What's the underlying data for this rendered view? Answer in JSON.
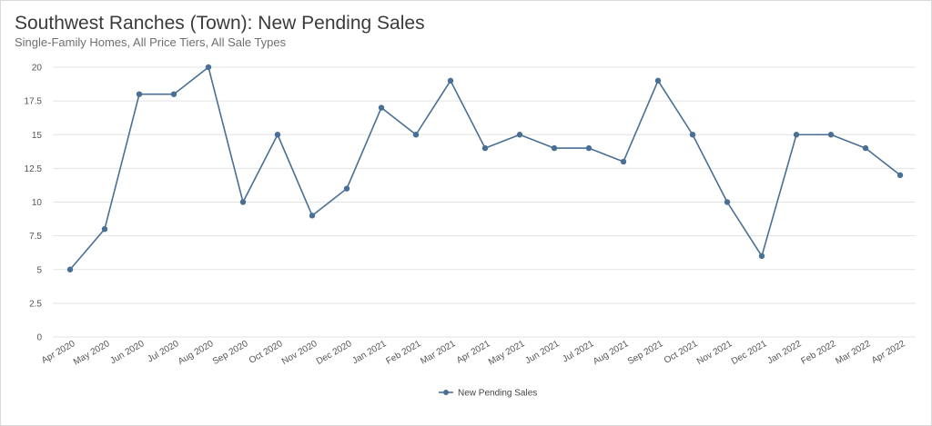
{
  "chart_data": {
    "type": "line",
    "title": "Southwest Ranches (Town): New Pending Sales",
    "subtitle": "Single-Family Homes, All Price Tiers, All Sale Types",
    "categories": [
      "Apr 2020",
      "May 2020",
      "Jun 2020",
      "Jul 2020",
      "Aug 2020",
      "Sep 2020",
      "Oct 2020",
      "Nov 2020",
      "Dec 2020",
      "Jan 2021",
      "Feb 2021",
      "Mar 2021",
      "Apr 2021",
      "May 2021",
      "Jun 2021",
      "Jul 2021",
      "Aug 2021",
      "Sep 2021",
      "Oct 2021",
      "Nov 2021",
      "Dec 2021",
      "Jan 2022",
      "Feb 2022",
      "Mar 2022",
      "Apr 2022"
    ],
    "series": [
      {
        "name": "New Pending Sales",
        "values": [
          5,
          8,
          18,
          18,
          20,
          10,
          15,
          9,
          11,
          17,
          15,
          19,
          14,
          15,
          14,
          14,
          13,
          19,
          15,
          10,
          6,
          15,
          15,
          14,
          12
        ]
      }
    ],
    "ylim": [
      0,
      20
    ],
    "yticks": [
      "0",
      "2.5",
      "5",
      "7.5",
      "10",
      "12.5",
      "15",
      "17.5",
      "20"
    ],
    "grid": true,
    "legend": "bottom-center",
    "line_color": "#4a6f94"
  }
}
